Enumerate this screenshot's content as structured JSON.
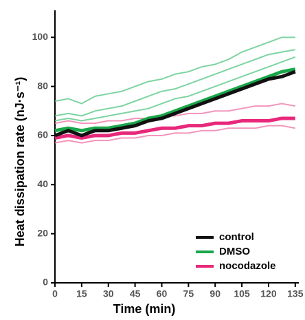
{
  "chart_data": {
    "type": "line",
    "xlabel": "Time (min)",
    "ylabel": "Heat dissipation rate (nJ·s⁻¹)",
    "x": [
      0,
      7.5,
      15,
      22.5,
      30,
      37.5,
      45,
      52.5,
      60,
      67.5,
      75,
      82.5,
      90,
      97.5,
      105,
      112.5,
      120,
      127.5,
      135
    ],
    "series": [
      {
        "name": "control",
        "color": "#111111",
        "values": [
          60,
          62,
          60,
          62,
          62,
          63,
          64,
          66,
          67,
          69,
          71,
          73,
          75,
          77,
          79,
          81,
          83,
          84,
          86
        ]
      },
      {
        "name": "DMSO",
        "color": "#1aa64a",
        "values": [
          62,
          63,
          62,
          63,
          63,
          64,
          65,
          67,
          68,
          70,
          72,
          74,
          76,
          78,
          80,
          82,
          84,
          86,
          87
        ]
      },
      {
        "name": "nocodazole",
        "color": "#e8287a",
        "values": [
          59,
          60,
          59,
          60,
          60,
          61,
          61,
          62,
          63,
          63,
          64,
          64,
          65,
          65,
          66,
          66,
          66,
          67,
          67
        ]
      }
    ],
    "traces": [
      {
        "color": "#5cc98a",
        "values": [
          74,
          75,
          73,
          76,
          77,
          78,
          80,
          82,
          83,
          85,
          86,
          88,
          89,
          91,
          94,
          96,
          98,
          100,
          100
        ]
      },
      {
        "color": "#5cc98a",
        "values": [
          68,
          69,
          68,
          70,
          71,
          72,
          74,
          76,
          78,
          79,
          81,
          83,
          85,
          87,
          89,
          91,
          93,
          94,
          95
        ]
      },
      {
        "color": "#5cc98a",
        "values": [
          66,
          67,
          66,
          67,
          68,
          69,
          70,
          71,
          73,
          75,
          76,
          78,
          80,
          82,
          84,
          86,
          88,
          90,
          92
        ]
      },
      {
        "color": "#f07aaa",
        "values": [
          65,
          66,
          65,
          65,
          66,
          66,
          67,
          67,
          68,
          68,
          69,
          69,
          70,
          70,
          71,
          72,
          72,
          73,
          72
        ]
      },
      {
        "color": "#f07aaa",
        "values": [
          57,
          58,
          57,
          58,
          58,
          59,
          59,
          60,
          60,
          61,
          61,
          62,
          62,
          63,
          63,
          63,
          64,
          64,
          63
        ]
      }
    ],
    "xlim": [
      0,
      137
    ],
    "ylim": [
      0,
      111
    ],
    "xticks": [
      0,
      15,
      30,
      45,
      60,
      75,
      90,
      105,
      120,
      135
    ],
    "yticks": [
      0,
      20,
      40,
      60,
      80,
      100
    ],
    "legend": "lower right"
  }
}
